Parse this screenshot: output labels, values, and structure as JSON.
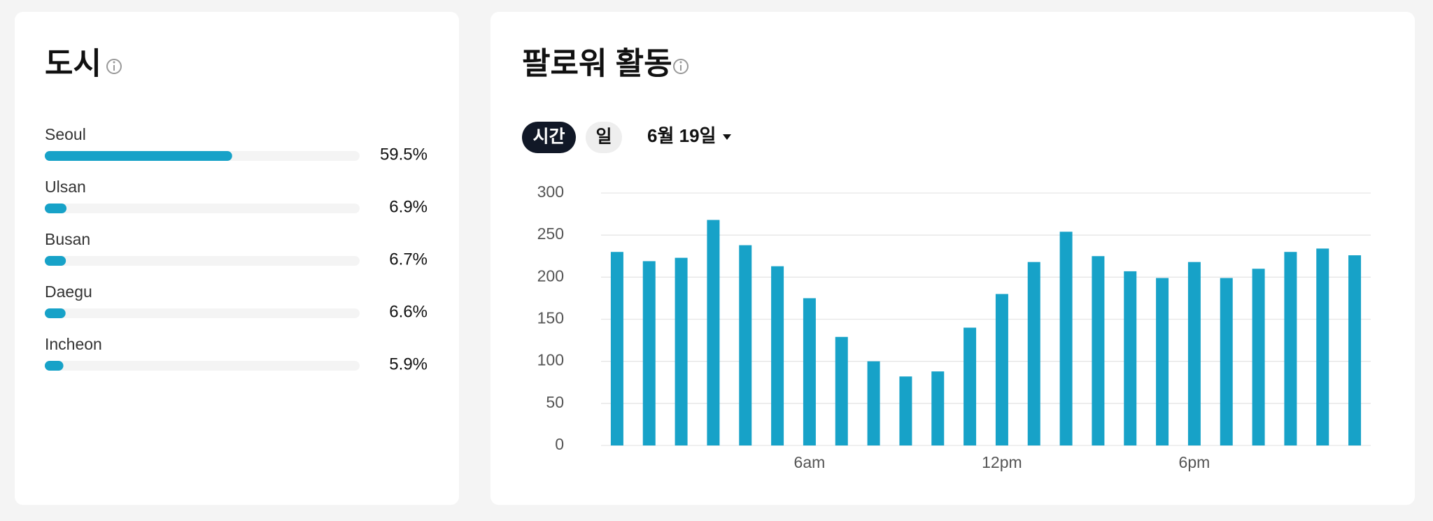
{
  "cities": {
    "title": "도시",
    "items": [
      {
        "name": "Seoul",
        "value": 59.5,
        "label": "59.5%"
      },
      {
        "name": "Ulsan",
        "value": 6.9,
        "label": "6.9%"
      },
      {
        "name": "Busan",
        "value": 6.7,
        "label": "6.7%"
      },
      {
        "name": "Daegu",
        "value": 6.6,
        "label": "6.6%"
      },
      {
        "name": "Incheon",
        "value": 5.9,
        "label": "5.9%"
      }
    ],
    "color": "#17a2c8"
  },
  "chart_data": {
    "type": "bar",
    "title": "팔로워 활동",
    "tabs": [
      "시간",
      "일"
    ],
    "date": "6월 19일",
    "categories": [
      null,
      null,
      null,
      null,
      null,
      null,
      "6am",
      null,
      null,
      null,
      null,
      null,
      "12pm",
      null,
      null,
      null,
      null,
      null,
      "6pm",
      null,
      null,
      null,
      null,
      null
    ],
    "values": [
      230,
      219,
      223,
      268,
      238,
      213,
      175,
      129,
      100,
      82,
      88,
      140,
      180,
      218,
      254,
      225,
      207,
      199,
      218,
      199,
      210,
      230,
      234,
      226
    ],
    "color": "#17a2c8",
    "ylim": [
      0,
      300
    ],
    "yticks": [
      0,
      50,
      100,
      150,
      200,
      250,
      300
    ],
    "grid": true
  }
}
